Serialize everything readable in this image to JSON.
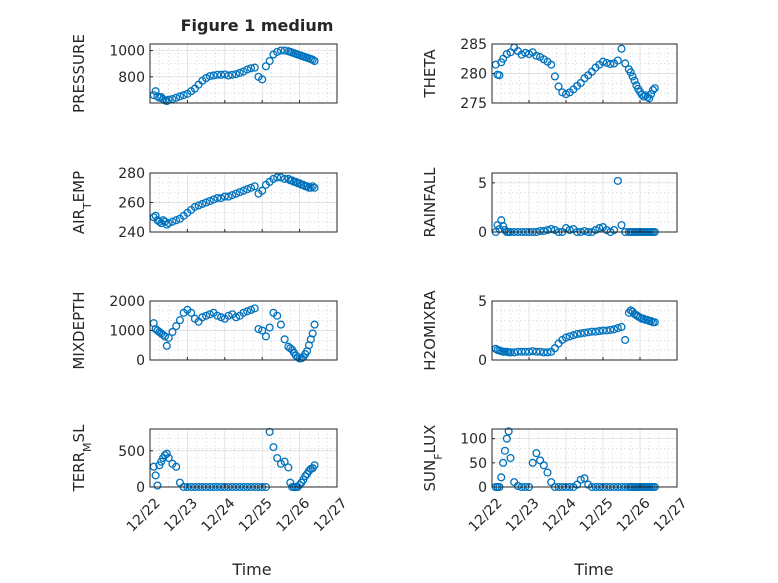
{
  "figure": {
    "title": "Figure 1 medium",
    "xlabel": "Time",
    "marker_color": "#0072BD",
    "x_ticks": [
      "12/22",
      "12/23",
      "12/24",
      "12/25",
      "12/26",
      "12/27"
    ]
  },
  "chart_data": [
    {
      "type": "scatter",
      "ylabel": "PRESSURE",
      "ylim": [
        600,
        1050
      ],
      "yticks": [
        800,
        1000
      ],
      "grid": true,
      "x": [
        0.1,
        0.15,
        0.2,
        0.25,
        0.3,
        0.35,
        0.4,
        0.45,
        0.5,
        0.6,
        0.7,
        0.8,
        0.9,
        1.0,
        1.1,
        1.2,
        1.3,
        1.4,
        1.5,
        1.6,
        1.7,
        1.8,
        1.9,
        2.0,
        2.1,
        2.2,
        2.3,
        2.4,
        2.5,
        2.6,
        2.7,
        2.8,
        2.9,
        3.0,
        3.1,
        3.2,
        3.3,
        3.4,
        3.5,
        3.6,
        3.7,
        3.75,
        3.8,
        3.85,
        3.9,
        3.95,
        4.0,
        4.05,
        4.1,
        4.15,
        4.2,
        4.25,
        4.3,
        4.35,
        4.4
      ],
      "y": [
        660,
        690,
        650,
        640,
        645,
        630,
        620,
        615,
        625,
        630,
        640,
        650,
        660,
        670,
        690,
        710,
        740,
        770,
        790,
        805,
        810,
        815,
        815,
        818,
        810,
        815,
        820,
        830,
        840,
        855,
        865,
        870,
        800,
        780,
        880,
        920,
        970,
        990,
        1000,
        1000,
        995,
        990,
        985,
        980,
        975,
        970,
        965,
        960,
        955,
        950,
        945,
        940,
        935,
        930,
        920
      ]
    },
    {
      "type": "scatter",
      "ylabel": "THETA",
      "ylim": [
        275,
        285
      ],
      "yticks": [
        275,
        280,
        285
      ],
      "grid": true,
      "x": [
        0.1,
        0.15,
        0.2,
        0.25,
        0.3,
        0.4,
        0.5,
        0.6,
        0.7,
        0.8,
        0.9,
        1.0,
        1.1,
        1.2,
        1.3,
        1.4,
        1.5,
        1.6,
        1.7,
        1.8,
        1.9,
        2.0,
        2.1,
        2.2,
        2.3,
        2.4,
        2.5,
        2.6,
        2.7,
        2.8,
        2.9,
        3.0,
        3.1,
        3.2,
        3.3,
        3.4,
        3.5,
        3.6,
        3.7,
        3.75,
        3.8,
        3.85,
        3.9,
        3.95,
        4.0,
        4.05,
        4.1,
        4.15,
        4.2,
        4.25,
        4.3,
        4.35,
        4.4
      ],
      "y": [
        281.5,
        279.8,
        279.7,
        281.9,
        282.5,
        283.3,
        283.6,
        284.4,
        283.8,
        283.2,
        283.5,
        283.3,
        283.6,
        283.0,
        282.8,
        282.4,
        282.0,
        281.5,
        279.5,
        277.8,
        276.8,
        276.5,
        276.8,
        277.3,
        277.9,
        278.4,
        279.2,
        279.7,
        280.3,
        281.0,
        281.5,
        282.0,
        281.8,
        281.6,
        281.7,
        282.2,
        284.2,
        281.7,
        280.7,
        280.2,
        279.5,
        278.8,
        278.0,
        277.4,
        276.9,
        276.4,
        276.1,
        276.3,
        276.0,
        275.8,
        276.5,
        277.2,
        277.5
      ]
    },
    {
      "type": "scatter",
      "ylabel": "AIR_TEMP",
      "ylim": [
        240,
        280
      ],
      "yticks": [
        240,
        260,
        280
      ],
      "grid": true,
      "x": [
        0.1,
        0.15,
        0.2,
        0.25,
        0.3,
        0.35,
        0.4,
        0.45,
        0.5,
        0.6,
        0.7,
        0.8,
        0.9,
        1.0,
        1.1,
        1.2,
        1.3,
        1.4,
        1.5,
        1.6,
        1.7,
        1.8,
        1.9,
        2.0,
        2.1,
        2.2,
        2.3,
        2.4,
        2.5,
        2.6,
        2.7,
        2.8,
        2.9,
        3.0,
        3.1,
        3.2,
        3.3,
        3.4,
        3.5,
        3.6,
        3.7,
        3.75,
        3.8,
        3.85,
        3.9,
        3.95,
        4.0,
        4.05,
        4.1,
        4.15,
        4.2,
        4.25,
        4.3,
        4.35,
        4.4
      ],
      "y": [
        250,
        251,
        248,
        247,
        246,
        248,
        247,
        245,
        246,
        247,
        248,
        249,
        251,
        253,
        255,
        257,
        258,
        259,
        260,
        261,
        262,
        263,
        263,
        264,
        264,
        265,
        266,
        267,
        268,
        269,
        270,
        271,
        266,
        268,
        272,
        274,
        276,
        277,
        277,
        276,
        276,
        275,
        275,
        274,
        274,
        273,
        273,
        272,
        272,
        271,
        271,
        270,
        270,
        271,
        270
      ]
    },
    {
      "type": "scatter",
      "ylabel": "RAINFALL",
      "ylim": [
        0,
        6
      ],
      "yticks": [
        0,
        5
      ],
      "grid": true,
      "x": [
        0.1,
        0.15,
        0.2,
        0.25,
        0.3,
        0.35,
        0.4,
        0.45,
        0.5,
        0.6,
        0.7,
        0.8,
        0.9,
        1.0,
        1.1,
        1.2,
        1.3,
        1.4,
        1.5,
        1.6,
        1.7,
        1.8,
        1.9,
        2.0,
        2.1,
        2.2,
        2.3,
        2.4,
        2.5,
        2.6,
        2.7,
        2.8,
        2.9,
        3.0,
        3.1,
        3.2,
        3.3,
        3.4,
        3.5,
        3.6,
        3.7,
        3.75,
        3.8,
        3.85,
        3.9,
        3.95,
        4.0,
        4.05,
        4.1,
        4.15,
        4.2,
        4.25,
        4.3,
        4.35,
        4.4
      ],
      "y": [
        0,
        0.7,
        0.3,
        1.2,
        0.6,
        0.2,
        0,
        0,
        0,
        0,
        0,
        0,
        0,
        0,
        0,
        0,
        0.1,
        0.1,
        0.2,
        0.3,
        0.2,
        0,
        0,
        0.4,
        0.2,
        0.3,
        0,
        0,
        0.1,
        0,
        0,
        0.2,
        0.4,
        0.5,
        0.2,
        0,
        0.2,
        5.2,
        0.7,
        0,
        0,
        0,
        0,
        0,
        0,
        0,
        0,
        0,
        0,
        0,
        0,
        0,
        0,
        0,
        0
      ]
    },
    {
      "type": "scatter",
      "ylabel": "MIXDEPTH",
      "ylim": [
        0,
        2000
      ],
      "yticks": [
        0,
        1000,
        2000
      ],
      "grid": true,
      "x": [
        0.1,
        0.15,
        0.2,
        0.25,
        0.3,
        0.35,
        0.4,
        0.45,
        0.5,
        0.6,
        0.7,
        0.8,
        0.9,
        1.0,
        1.1,
        1.2,
        1.3,
        1.4,
        1.5,
        1.6,
        1.7,
        1.8,
        1.9,
        2.0,
        2.1,
        2.2,
        2.3,
        2.4,
        2.5,
        2.6,
        2.7,
        2.8,
        2.9,
        3.0,
        3.1,
        3.2,
        3.3,
        3.4,
        3.5,
        3.6,
        3.7,
        3.75,
        3.8,
        3.85,
        3.9,
        3.95,
        4.0,
        4.05,
        4.1,
        4.15,
        4.2,
        4.25,
        4.3,
        4.35,
        4.4
      ],
      "y": [
        1250,
        1050,
        1000,
        950,
        900,
        850,
        800,
        480,
        750,
        950,
        1150,
        1350,
        1600,
        1700,
        1600,
        1400,
        1300,
        1450,
        1500,
        1550,
        1600,
        1500,
        1450,
        1400,
        1500,
        1550,
        1450,
        1500,
        1600,
        1650,
        1700,
        1750,
        1050,
        1000,
        800,
        1100,
        1600,
        1500,
        1200,
        700,
        450,
        400,
        350,
        250,
        150,
        100,
        50,
        60,
        100,
        200,
        300,
        500,
        700,
        900,
        1200
      ]
    },
    {
      "type": "scatter",
      "ylabel": "H2OMIXRA",
      "ylim": [
        0,
        5
      ],
      "yticks": [
        0,
        5
      ],
      "grid": true,
      "x": [
        0.1,
        0.15,
        0.2,
        0.25,
        0.3,
        0.35,
        0.4,
        0.45,
        0.5,
        0.6,
        0.7,
        0.8,
        0.9,
        1.0,
        1.1,
        1.2,
        1.3,
        1.4,
        1.5,
        1.6,
        1.7,
        1.8,
        1.9,
        2.0,
        2.1,
        2.2,
        2.3,
        2.4,
        2.5,
        2.6,
        2.7,
        2.8,
        2.9,
        3.0,
        3.1,
        3.2,
        3.3,
        3.4,
        3.5,
        3.6,
        3.7,
        3.75,
        3.8,
        3.85,
        3.9,
        3.95,
        4.0,
        4.05,
        4.1,
        4.15,
        4.2,
        4.25,
        4.3,
        4.35,
        4.4
      ],
      "y": [
        0.95,
        0.85,
        0.8,
        0.75,
        0.7,
        0.7,
        0.7,
        0.65,
        0.65,
        0.65,
        0.7,
        0.7,
        0.7,
        0.7,
        0.75,
        0.7,
        0.7,
        0.65,
        0.65,
        0.7,
        1.0,
        1.4,
        1.7,
        1.9,
        2.0,
        2.1,
        2.2,
        2.25,
        2.3,
        2.35,
        2.4,
        2.4,
        2.45,
        2.5,
        2.5,
        2.55,
        2.6,
        2.7,
        2.8,
        1.7,
        4.0,
        4.2,
        4.1,
        3.9,
        3.8,
        3.7,
        3.6,
        3.5,
        3.5,
        3.4,
        3.4,
        3.3,
        3.3,
        3.2,
        3.2
      ]
    },
    {
      "type": "scatter",
      "ylabel": "TERR_MSL",
      "ylim": [
        0,
        800
      ],
      "yticks": [
        0,
        500
      ],
      "grid": true,
      "x": [
        0.1,
        0.15,
        0.2,
        0.25,
        0.3,
        0.35,
        0.4,
        0.45,
        0.5,
        0.6,
        0.7,
        0.8,
        0.9,
        1.0,
        1.1,
        1.2,
        1.3,
        1.4,
        1.5,
        1.6,
        1.7,
        1.8,
        1.9,
        2.0,
        2.1,
        2.2,
        2.3,
        2.4,
        2.5,
        2.6,
        2.7,
        2.8,
        2.9,
        3.0,
        3.1,
        3.2,
        3.3,
        3.4,
        3.5,
        3.6,
        3.7,
        3.75,
        3.8,
        3.85,
        3.9,
        3.95,
        4.0,
        4.05,
        4.1,
        4.15,
        4.2,
        4.25,
        4.3,
        4.35,
        4.4
      ],
      "y": [
        280,
        160,
        20,
        300,
        350,
        400,
        440,
        460,
        400,
        320,
        280,
        60,
        0,
        0,
        0,
        0,
        0,
        0,
        0,
        0,
        0,
        0,
        0,
        0,
        0,
        0,
        0,
        0,
        0,
        0,
        0,
        0,
        0,
        0,
        0,
        760,
        550,
        400,
        320,
        350,
        270,
        60,
        0,
        0,
        0,
        0,
        30,
        60,
        100,
        150,
        180,
        220,
        250,
        260,
        300
      ]
    },
    {
      "type": "scatter",
      "ylabel": "SUN_FLUX",
      "ylim": [
        0,
        120
      ],
      "yticks": [
        0,
        50,
        100
      ],
      "grid": true,
      "x": [
        0.1,
        0.15,
        0.2,
        0.25,
        0.3,
        0.35,
        0.4,
        0.45,
        0.5,
        0.6,
        0.7,
        0.8,
        0.9,
        1.0,
        1.1,
        1.2,
        1.3,
        1.4,
        1.5,
        1.6,
        1.7,
        1.8,
        1.9,
        2.0,
        2.1,
        2.2,
        2.3,
        2.4,
        2.5,
        2.6,
        2.7,
        2.8,
        2.9,
        3.0,
        3.1,
        3.2,
        3.3,
        3.4,
        3.5,
        3.6,
        3.7,
        3.75,
        3.8,
        3.85,
        3.9,
        3.95,
        4.0,
        4.05,
        4.1,
        4.15,
        4.2,
        4.25,
        4.3,
        4.35,
        4.4
      ],
      "y": [
        0,
        0,
        0,
        20,
        50,
        75,
        100,
        115,
        60,
        10,
        2,
        0,
        0,
        0,
        50,
        70,
        55,
        45,
        30,
        10,
        0,
        0,
        0,
        0,
        0,
        0,
        5,
        15,
        18,
        5,
        0,
        0,
        0,
        0,
        0,
        0,
        0,
        0,
        0,
        0,
        0,
        0,
        0,
        0,
        0,
        0,
        0,
        0,
        0,
        0,
        0,
        0,
        0,
        0,
        0
      ]
    }
  ]
}
